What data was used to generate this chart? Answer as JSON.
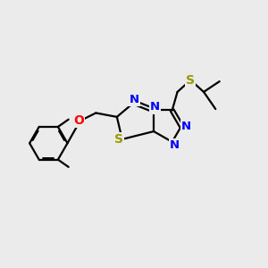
{
  "bg_color": "#ebebeb",
  "atom_colors": {
    "N": "#0000ff",
    "O": "#ff0000",
    "S": "#999900"
  },
  "bond_color": "#000000",
  "bond_width": 1.6,
  "figsize": [
    3.0,
    3.0
  ],
  "dpi": 100,
  "xlim": [
    0,
    10
  ],
  "ylim": [
    0,
    10
  ]
}
